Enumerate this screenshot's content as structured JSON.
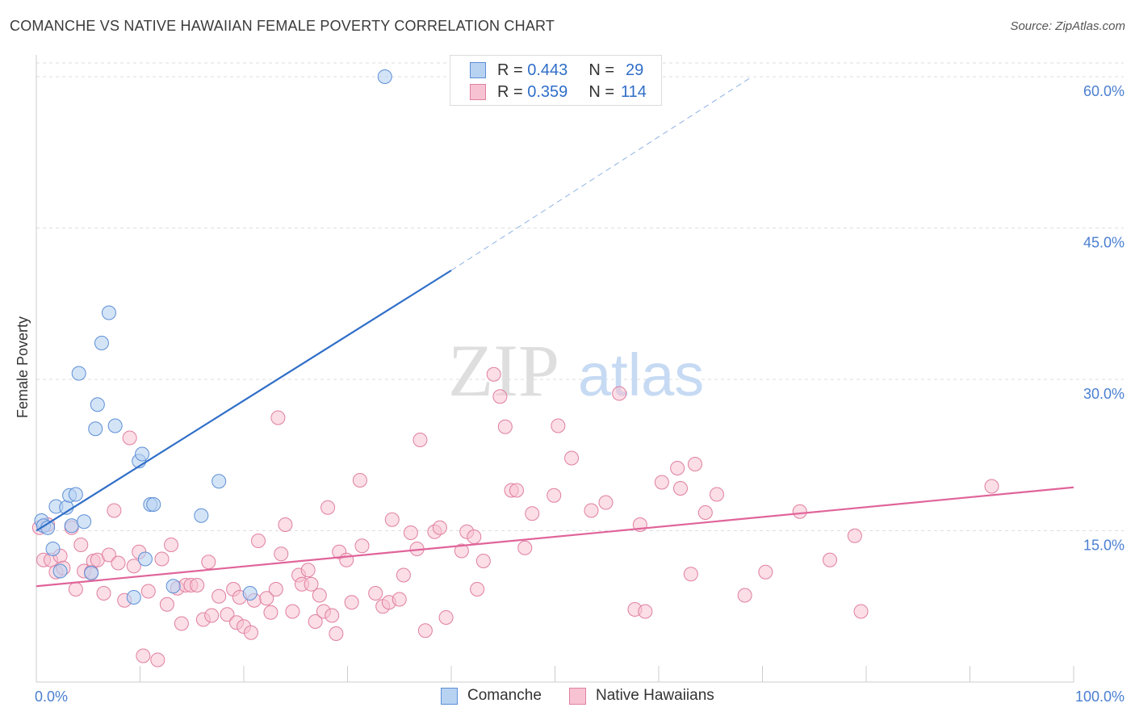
{
  "title": "COMANCHE VS NATIVE HAWAIIAN FEMALE POVERTY CORRELATION CHART",
  "source": "Source: ZipAtlas.com",
  "watermark": {
    "zip": "ZIP",
    "atlas": "atlas"
  },
  "colors": {
    "comanche_fill": "#b8d2f2",
    "comanche_stroke": "#5d8fd6",
    "comanche_line": "#2f6ec8",
    "hawaiian_fill": "#f7c3d2",
    "hawaiian_stroke": "#e07fa0",
    "hawaiian_line": "#e0649a",
    "tick_label": "#4a7fd0",
    "grid": "#dddddd"
  },
  "legend": {
    "rows": [
      {
        "r_label": "R =",
        "r_value": "0.443",
        "n_label": "N =",
        "n_value": "29"
      },
      {
        "r_label": "R =",
        "r_value": "0.359",
        "n_label": "N =",
        "n_value": "114"
      }
    ],
    "bottom": [
      "Comanche",
      "Native Hawaiians"
    ]
  },
  "chart_data": {
    "type": "scatter",
    "title": "COMANCHE VS NATIVE HAWAIIAN FEMALE POVERTY CORRELATION CHART",
    "xlabel": "",
    "ylabel": "Female Poverty",
    "xlim": [
      0,
      100
    ],
    "ylim": [
      0,
      62
    ],
    "x_tick_labels": [
      "0.0%",
      "100.0%"
    ],
    "y_ticks": [
      15,
      30,
      45,
      60
    ],
    "y_tick_labels": [
      "15.0%",
      "30.0%",
      "45.0%",
      "60.0%"
    ],
    "grid": true,
    "legend_position": "top-center",
    "series": [
      {
        "name": "Comanche",
        "r": 0.443,
        "n": 29,
        "trend": {
          "x0": 0,
          "y0": 15.0,
          "x1": 40,
          "y1": 40.8,
          "dash_to_x": 69,
          "dash_to_y": 60
        },
        "points": [
          [
            0.5,
            16
          ],
          [
            0.7,
            15.5
          ],
          [
            1.1,
            15.3
          ],
          [
            1.6,
            13.2
          ],
          [
            1.9,
            17.4
          ],
          [
            2.3,
            11
          ],
          [
            2.9,
            17.3
          ],
          [
            3.2,
            18.5
          ],
          [
            3.4,
            15.5
          ],
          [
            3.8,
            18.6
          ],
          [
            4.1,
            30.6
          ],
          [
            4.6,
            15.9
          ],
          [
            5.3,
            10.8
          ],
          [
            5.7,
            25.1
          ],
          [
            5.9,
            27.5
          ],
          [
            6.3,
            33.6
          ],
          [
            7.0,
            36.6
          ],
          [
            7.6,
            25.4
          ],
          [
            9.4,
            8.4
          ],
          [
            9.9,
            21.9
          ],
          [
            10.2,
            22.6
          ],
          [
            10.5,
            12.2
          ],
          [
            11.0,
            17.6
          ],
          [
            11.3,
            17.6
          ],
          [
            13.2,
            9.5
          ],
          [
            15.9,
            16.5
          ],
          [
            17.6,
            19.9
          ],
          [
            20.6,
            8.8
          ],
          [
            33.6,
            60
          ]
        ]
      },
      {
        "name": "Native Hawaiians",
        "r": 0.359,
        "n": 114,
        "trend": {
          "x0": 0,
          "y0": 9.5,
          "x1": 100,
          "y1": 19.3
        },
        "points": [
          [
            0.3,
            15.3
          ],
          [
            0.7,
            12.1
          ],
          [
            1.1,
            15.6
          ],
          [
            1.4,
            12.1
          ],
          [
            1.9,
            10.9
          ],
          [
            2.3,
            12.5
          ],
          [
            2.6,
            11.3
          ],
          [
            3.4,
            15.3
          ],
          [
            3.8,
            9.2
          ],
          [
            4.3,
            13.6
          ],
          [
            4.6,
            11.0
          ],
          [
            5.3,
            10.9
          ],
          [
            5.5,
            12.0
          ],
          [
            5.9,
            12.1
          ],
          [
            6.5,
            8.8
          ],
          [
            7.0,
            12.6
          ],
          [
            7.5,
            17.0
          ],
          [
            7.9,
            11.8
          ],
          [
            8.5,
            8.1
          ],
          [
            9.0,
            24.2
          ],
          [
            9.4,
            11.5
          ],
          [
            9.9,
            12.9
          ],
          [
            10.3,
            2.6
          ],
          [
            10.8,
            9.0
          ],
          [
            11.7,
            2.2
          ],
          [
            12.1,
            12.2
          ],
          [
            12.6,
            7.7
          ],
          [
            13.0,
            13.6
          ],
          [
            13.6,
            9.3
          ],
          [
            14.0,
            5.8
          ],
          [
            14.4,
            9.6
          ],
          [
            14.9,
            9.6
          ],
          [
            15.5,
            9.6
          ],
          [
            16.1,
            6.2
          ],
          [
            16.6,
            11.9
          ],
          [
            16.9,
            6.6
          ],
          [
            17.6,
            8.5
          ],
          [
            18.4,
            6.7
          ],
          [
            19.0,
            9.2
          ],
          [
            19.3,
            5.9
          ],
          [
            19.6,
            8.4
          ],
          [
            20.0,
            5.5
          ],
          [
            20.7,
            4.9
          ],
          [
            21.0,
            8.1
          ],
          [
            21.4,
            14.0
          ],
          [
            22.2,
            8.3
          ],
          [
            22.6,
            6.9
          ],
          [
            23.1,
            9.2
          ],
          [
            23.6,
            12.7
          ],
          [
            24.0,
            15.6
          ],
          [
            23.3,
            26.2
          ],
          [
            24.7,
            7.0
          ],
          [
            25.3,
            10.6
          ],
          [
            25.6,
            9.7
          ],
          [
            26.2,
            11.1
          ],
          [
            26.5,
            9.7
          ],
          [
            26.9,
            6.0
          ],
          [
            27.3,
            8.6
          ],
          [
            27.7,
            7.0
          ],
          [
            28.1,
            17.3
          ],
          [
            28.5,
            6.6
          ],
          [
            28.9,
            4.8
          ],
          [
            29.2,
            12.9
          ],
          [
            29.9,
            12.1
          ],
          [
            30.4,
            7.9
          ],
          [
            31.2,
            20.0
          ],
          [
            31.4,
            13.5
          ],
          [
            32.7,
            8.8
          ],
          [
            33.4,
            7.5
          ],
          [
            34.0,
            7.9
          ],
          [
            34.3,
            16.1
          ],
          [
            35.0,
            8.2
          ],
          [
            35.4,
            10.6
          ],
          [
            36.1,
            14.8
          ],
          [
            36.7,
            13.2
          ],
          [
            37.0,
            24.0
          ],
          [
            37.5,
            5.1
          ],
          [
            38.4,
            14.9
          ],
          [
            38.9,
            15.3
          ],
          [
            39.5,
            6.4
          ],
          [
            41.0,
            13.0
          ],
          [
            41.5,
            14.9
          ],
          [
            42.2,
            14.4
          ],
          [
            42.5,
            9.2
          ],
          [
            43.1,
            12.0
          ],
          [
            44.1,
            30.5
          ],
          [
            44.7,
            28.3
          ],
          [
            45.2,
            25.3
          ],
          [
            45.8,
            19.0
          ],
          [
            46.3,
            19.0
          ],
          [
            47.1,
            13.3
          ],
          [
            47.8,
            16.7
          ],
          [
            49.9,
            18.5
          ],
          [
            50.3,
            25.4
          ],
          [
            51.6,
            22.2
          ],
          [
            53.5,
            17.0
          ],
          [
            54.9,
            17.8
          ],
          [
            56.2,
            28.6
          ],
          [
            57.7,
            7.2
          ],
          [
            58.2,
            15.6
          ],
          [
            58.7,
            7.0
          ],
          [
            60.3,
            19.8
          ],
          [
            61.8,
            21.2
          ],
          [
            62.1,
            19.2
          ],
          [
            63.1,
            10.7
          ],
          [
            63.5,
            21.6
          ],
          [
            64.5,
            16.8
          ],
          [
            65.6,
            18.6
          ],
          [
            68.3,
            8.6
          ],
          [
            70.3,
            10.9
          ],
          [
            73.6,
            16.9
          ],
          [
            76.5,
            12.1
          ],
          [
            78.9,
            14.5
          ],
          [
            79.5,
            7.0
          ],
          [
            92.1,
            19.4
          ]
        ]
      }
    ]
  }
}
